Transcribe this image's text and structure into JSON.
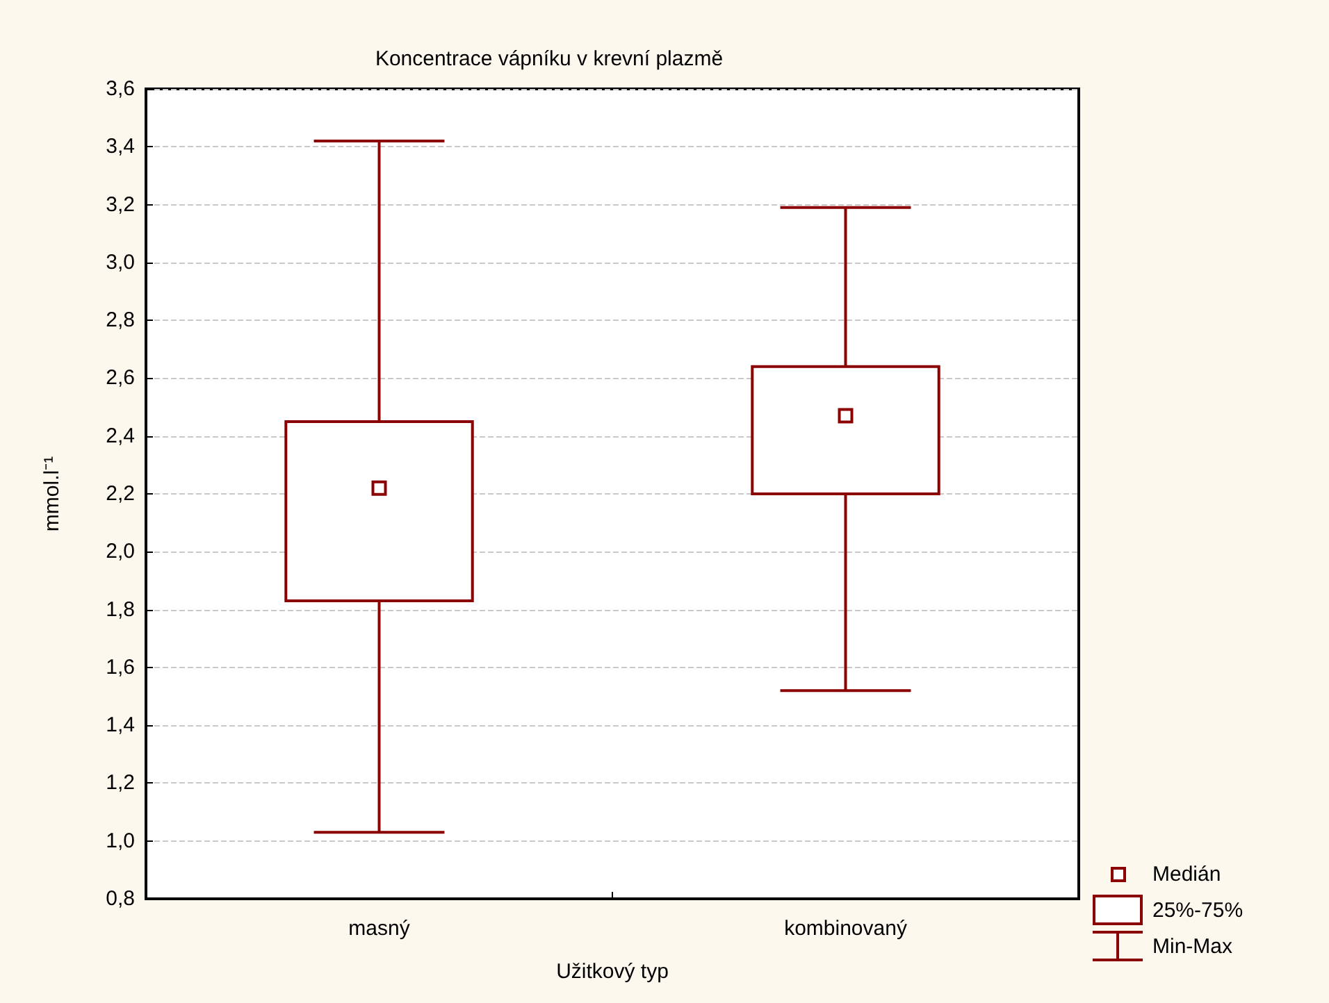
{
  "chart_data": {
    "type": "box",
    "title": "Koncentrace vápníku v krevní plazmě",
    "xlabel": "Užitkový typ",
    "ylabel": "mmol.l⁻¹",
    "categories": [
      "masný",
      "kombinovaný"
    ],
    "series": [
      {
        "color": "#8b0000",
        "boxes": [
          {
            "low": 1.03,
            "q1": 1.83,
            "median": 2.22,
            "q3": 2.45,
            "high": 3.42
          },
          {
            "low": 1.52,
            "q1": 2.2,
            "median": 2.47,
            "q3": 2.64,
            "high": 3.19
          }
        ]
      }
    ],
    "ylim": [
      0.8,
      3.6
    ],
    "yticks": [
      {
        "value": 0.8,
        "label": "0,8"
      },
      {
        "value": 1.0,
        "label": "1,0"
      },
      {
        "value": 1.2,
        "label": "1,2"
      },
      {
        "value": 1.4,
        "label": "1,4"
      },
      {
        "value": 1.6,
        "label": "1,6"
      },
      {
        "value": 1.8,
        "label": "1,8"
      },
      {
        "value": 2.0,
        "label": "2,0"
      },
      {
        "value": 2.2,
        "label": "2,2"
      },
      {
        "value": 2.4,
        "label": "2,4"
      },
      {
        "value": 2.6,
        "label": "2,6"
      },
      {
        "value": 2.8,
        "label": "2,8"
      },
      {
        "value": 3.0,
        "label": "3,0"
      },
      {
        "value": 3.2,
        "label": "3,2"
      },
      {
        "value": 3.4,
        "label": "3,4"
      },
      {
        "value": 3.6,
        "label": "3,6"
      }
    ],
    "grid": "y",
    "annotations": [
      "Medián",
      "25%-75%",
      "Min-Max"
    ]
  }
}
